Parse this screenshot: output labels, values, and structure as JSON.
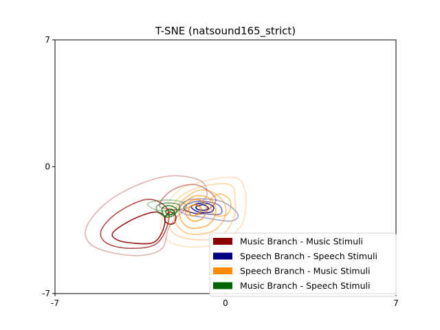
{
  "chart_data": {
    "type": "kde-contour",
    "title": "T-SNE (natsound165_strict)",
    "xlabel": "",
    "ylabel": "",
    "xlim": [
      -7,
      7
    ],
    "ylim": [
      -7,
      7
    ],
    "xticks": [
      "-7",
      "0",
      "7"
    ],
    "yticks": [
      "-7",
      "0",
      "7"
    ],
    "grid": false,
    "legend_position": "lower-right",
    "series": [
      {
        "name": "Music Branch - Music Stimuli",
        "color": "#8b0000",
        "contours": [
          {
            "alpha": 0.3,
            "points": [
              [
                -5.7,
                -3.3
              ],
              [
                -4.9,
                -2.0
              ],
              [
                -3.6,
                -1.0
              ],
              [
                -2.2,
                -0.5
              ],
              [
                -1.0,
                -0.8
              ],
              [
                -0.8,
                -1.7
              ],
              [
                -1.6,
                -2.3
              ],
              [
                -2.3,
                -3.3
              ],
              [
                -2.6,
                -4.5
              ],
              [
                -3.5,
                -4.9
              ],
              [
                -4.8,
                -4.7
              ],
              [
                -5.6,
                -4.2
              ]
            ]
          },
          {
            "alpha": 0.45,
            "points": [
              [
                -2.7,
                -2.2
              ],
              [
                -2.2,
                -1.3
              ],
              [
                -1.2,
                -1.0
              ],
              [
                -0.4,
                -1.8
              ],
              [
                -1.0,
                -2.6
              ],
              [
                -1.7,
                -2.4
              ]
            ]
          },
          {
            "alpha": 0.7,
            "points": [
              [
                -5.1,
                -3.5
              ],
              [
                -4.4,
                -2.5
              ],
              [
                -3.2,
                -1.8
              ],
              [
                -2.4,
                -2.3
              ],
              [
                -2.4,
                -3.3
              ],
              [
                -2.9,
                -4.3
              ],
              [
                -4.0,
                -4.5
              ],
              [
                -4.9,
                -4.2
              ]
            ]
          },
          {
            "alpha": 0.9,
            "points": [
              [
                -4.6,
                -3.6
              ],
              [
                -3.8,
                -2.9
              ],
              [
                -2.9,
                -2.5
              ],
              [
                -2.5,
                -2.8
              ],
              [
                -2.6,
                -3.6
              ],
              [
                -3.0,
                -4.2
              ],
              [
                -3.9,
                -4.2
              ],
              [
                -4.5,
                -4.0
              ]
            ]
          },
          {
            "alpha": 0.9,
            "points": [
              [
                -2.5,
                -2.9
              ],
              [
                -2.3,
                -2.5
              ],
              [
                -2.05,
                -2.7
              ],
              [
                -2.1,
                -3.1
              ],
              [
                -2.35,
                -3.15
              ]
            ]
          }
        ]
      },
      {
        "name": "Speech Branch - Speech Stimuli",
        "color": "#000080",
        "contours": [
          {
            "alpha": 0.35,
            "points": [
              [
                -1.9,
                -2.2
              ],
              [
                -1.4,
                -1.8
              ],
              [
                -0.2,
                -1.9
              ],
              [
                0.5,
                -2.6
              ],
              [
                0.2,
                -3.0
              ],
              [
                -0.9,
                -2.8
              ],
              [
                -1.7,
                -2.6
              ]
            ]
          },
          {
            "alpha": 0.55,
            "points": [
              [
                -1.7,
                -2.2
              ],
              [
                -1.1,
                -1.9
              ],
              [
                -0.3,
                -2.1
              ],
              [
                -0.2,
                -2.6
              ],
              [
                -0.9,
                -2.6
              ],
              [
                -1.5,
                -2.5
              ]
            ]
          },
          {
            "alpha": 0.85,
            "points": [
              [
                -1.4,
                -2.2
              ],
              [
                -0.9,
                -2.0
              ],
              [
                -0.5,
                -2.2
              ],
              [
                -0.6,
                -2.5
              ],
              [
                -1.1,
                -2.5
              ]
            ]
          },
          {
            "alpha": 0.95,
            "points": [
              [
                -1.2,
                -2.2
              ],
              [
                -0.9,
                -2.1
              ],
              [
                -0.7,
                -2.3
              ],
              [
                -0.9,
                -2.4
              ],
              [
                -1.15,
                -2.35
              ]
            ]
          }
        ]
      },
      {
        "name": "Speech Branch - Music Stimuli",
        "color": "#ff8c00",
        "contours": [
          {
            "alpha": 0.25,
            "points": [
              [
                -2.0,
                -1.4
              ],
              [
                -0.9,
                -0.8
              ],
              [
                0.4,
                -0.6
              ],
              [
                0.8,
                -1.3
              ],
              [
                0.8,
                -2.6
              ],
              [
                0.5,
                -3.5
              ],
              [
                -0.5,
                -4.3
              ],
              [
                -1.7,
                -4.4
              ],
              [
                -2.5,
                -3.9
              ],
              [
                -2.6,
                -2.8
              ]
            ]
          },
          {
            "alpha": 0.35,
            "points": [
              [
                -1.9,
                -1.7
              ],
              [
                -1.0,
                -1.1
              ],
              [
                0.2,
                -1.0
              ],
              [
                0.4,
                -2.0
              ],
              [
                0.3,
                -3.0
              ],
              [
                -0.3,
                -3.9
              ],
              [
                -1.4,
                -4.0
              ],
              [
                -2.2,
                -3.6
              ],
              [
                -2.3,
                -2.6
              ]
            ]
          },
          {
            "alpha": 0.5,
            "points": [
              [
                -1.8,
                -1.9
              ],
              [
                -1.1,
                -1.3
              ],
              [
                -0.4,
                -1.5
              ],
              [
                0.0,
                -2.2
              ],
              [
                -0.1,
                -3.0
              ],
              [
                -0.6,
                -3.6
              ],
              [
                -1.5,
                -3.7
              ],
              [
                -2.0,
                -3.2
              ],
              [
                -2.1,
                -2.5
              ]
            ]
          },
          {
            "alpha": 0.65,
            "points": [
              [
                -1.7,
                -2.0
              ],
              [
                -1.2,
                -1.6
              ],
              [
                -0.6,
                -1.8
              ],
              [
                -0.4,
                -2.5
              ],
              [
                -0.7,
                -3.2
              ],
              [
                -1.4,
                -3.4
              ],
              [
                -1.8,
                -3.0
              ],
              [
                -1.9,
                -2.4
              ]
            ]
          },
          {
            "alpha": 0.75,
            "points": [
              [
                -1.6,
                -2.1
              ],
              [
                -1.2,
                -1.8
              ],
              [
                -0.8,
                -2.1
              ],
              [
                -0.9,
                -2.8
              ],
              [
                -1.3,
                -3.0
              ],
              [
                -1.6,
                -2.7
              ]
            ]
          },
          {
            "alpha": 0.9,
            "points": [
              [
                -1.5,
                -2.3
              ],
              [
                -1.25,
                -2.1
              ],
              [
                -1.0,
                -2.3
              ],
              [
                -1.1,
                -2.6
              ],
              [
                -1.4,
                -2.7
              ]
            ]
          },
          {
            "alpha": 0.55,
            "points": [
              [
                -0.6,
                -1.8
              ],
              [
                -0.2,
                -1.5
              ],
              [
                0.2,
                -1.9
              ],
              [
                0.1,
                -2.6
              ],
              [
                -0.4,
                -2.7
              ],
              [
                -0.6,
                -2.3
              ]
            ]
          }
        ]
      },
      {
        "name": "Music Branch - Speech Stimuli",
        "color": "#006400",
        "contours": [
          {
            "alpha": 0.35,
            "points": [
              [
                -3.2,
                -2.05
              ],
              [
                -2.6,
                -1.85
              ],
              [
                -1.9,
                -1.9
              ],
              [
                -1.6,
                -2.2
              ],
              [
                -2.1,
                -2.4
              ],
              [
                -2.8,
                -2.4
              ]
            ]
          },
          {
            "alpha": 0.55,
            "points": [
              [
                -2.8,
                -2.15
              ],
              [
                -2.4,
                -2.0
              ],
              [
                -1.9,
                -2.1
              ],
              [
                -2.0,
                -2.5
              ],
              [
                -2.5,
                -2.7
              ],
              [
                -2.8,
                -2.45
              ]
            ]
          },
          {
            "alpha": 0.75,
            "points": [
              [
                -2.6,
                -2.3
              ],
              [
                -2.3,
                -2.15
              ],
              [
                -2.0,
                -2.35
              ],
              [
                -2.15,
                -2.7
              ],
              [
                -2.5,
                -2.75
              ]
            ]
          },
          {
            "alpha": 0.9,
            "points": [
              [
                -2.45,
                -2.45
              ],
              [
                -2.25,
                -2.35
              ],
              [
                -2.1,
                -2.5
              ],
              [
                -2.25,
                -2.65
              ],
              [
                -2.4,
                -2.6
              ]
            ]
          }
        ]
      }
    ]
  }
}
